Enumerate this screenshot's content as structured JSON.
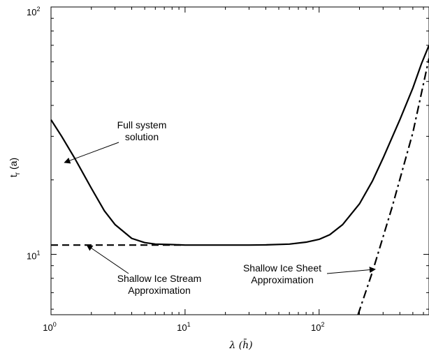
{
  "chart_data": {
    "type": "line",
    "x_scale": "log",
    "y_scale": "log",
    "xlim": [
      1,
      660
    ],
    "ylim": [
      5.7,
      100
    ],
    "xlabel": "λ  (h̄)",
    "ylabel": "t_r (a)",
    "x_ticks": [
      {
        "value": 1,
        "label": "10^0"
      },
      {
        "value": 10,
        "label": "10^1"
      },
      {
        "value": 100,
        "label": "10^2"
      }
    ],
    "y_ticks": [
      {
        "value": 10,
        "label": "10^1"
      },
      {
        "value": 100,
        "label": "10^2"
      }
    ],
    "grid": false,
    "series": [
      {
        "style": "solid",
        "x": [
          1.0,
          1.2,
          1.5,
          2.0,
          2.5,
          3.0,
          4.0,
          5.0,
          6.0,
          8.0,
          10,
          15,
          20,
          30,
          40,
          60,
          80,
          100,
          120,
          150,
          200,
          250,
          300,
          400,
          500,
          580,
          660
        ],
        "y": [
          35.0,
          30.0,
          24.5,
          18.5,
          15.0,
          13.2,
          11.6,
          11.15,
          11.0,
          10.95,
          10.9,
          10.9,
          10.9,
          10.9,
          10.92,
          11.0,
          11.2,
          11.5,
          12.0,
          13.2,
          16.0,
          19.8,
          24.5,
          35.0,
          47.0,
          59.0,
          70.0
        ]
      },
      {
        "style": "dashed",
        "x": [
          1.0,
          2.0,
          4.0,
          7.0,
          10
        ],
        "y": [
          10.9,
          10.9,
          10.9,
          10.9,
          10.9
        ]
      },
      {
        "style": "dashdot",
        "x": [
          195,
          250,
          350,
          500,
          660
        ],
        "y": [
          5.7,
          8.5,
          15.5,
          31.0,
          62.0
        ]
      }
    ],
    "annotations": [
      {
        "text": [
          "Full system",
          "solution"
        ],
        "x": 1.26,
        "y": 23.5
      },
      {
        "text": [
          "Shallow Ice Stream",
          "Approximation"
        ],
        "x": 1.85,
        "y": 10.9
      },
      {
        "text": [
          "Shallow Ice Sheet",
          "Approximation"
        ],
        "x": 262,
        "y": 8.7
      }
    ]
  }
}
